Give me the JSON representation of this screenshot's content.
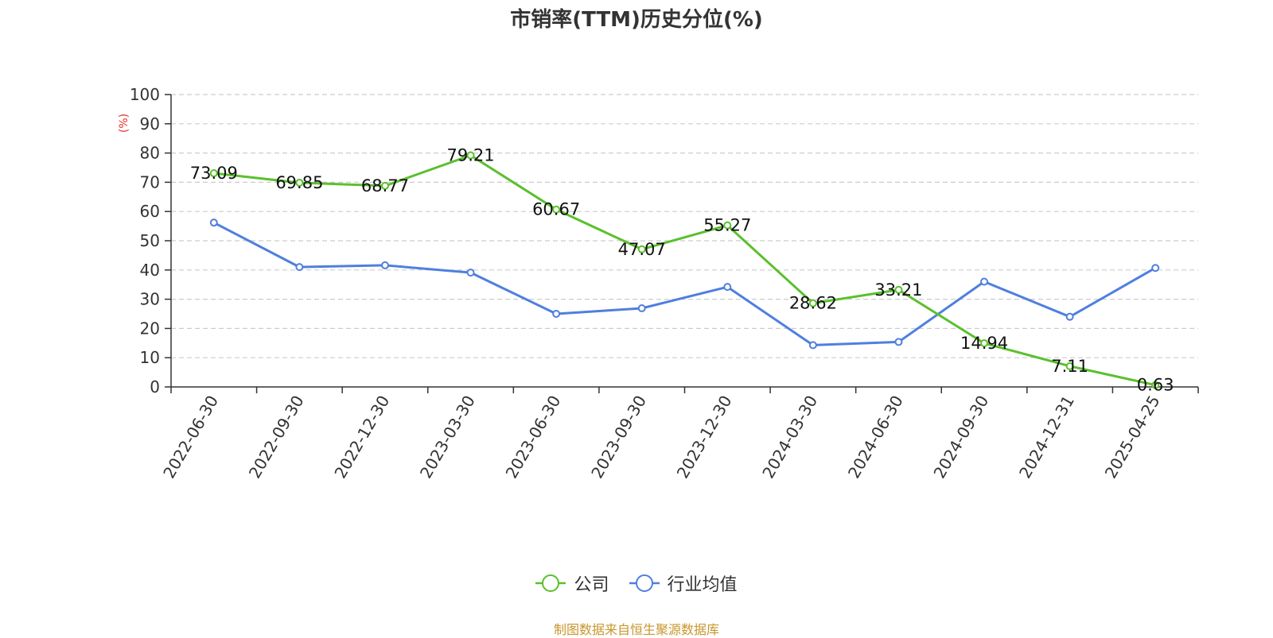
{
  "chart_data": {
    "type": "line",
    "title": "市销率(TTM)历史分位(%)",
    "ylabel": "(%)",
    "xlabel": "",
    "ylim": [
      0,
      100
    ],
    "yticks": [
      0,
      10,
      20,
      30,
      40,
      50,
      60,
      70,
      80,
      90,
      100
    ],
    "grid": true,
    "legend_position": "bottom",
    "categories": [
      "2022-06-30",
      "2022-09-30",
      "2022-12-30",
      "2023-03-30",
      "2023-06-30",
      "2023-09-30",
      "2023-12-30",
      "2024-03-30",
      "2024-06-30",
      "2024-09-30",
      "2024-12-31",
      "2025-04-25"
    ],
    "series": [
      {
        "name": "公司",
        "color": "#5ac02d",
        "values": [
          73.09,
          69.85,
          68.77,
          79.21,
          60.67,
          47.07,
          55.27,
          28.62,
          33.21,
          14.94,
          7.11,
          0.63
        ],
        "labels": [
          "73.09",
          "69.85",
          "68.77",
          "79.21",
          "60.67",
          "47.07",
          "55.27",
          "28.62",
          "33.21",
          "14.94",
          "7.11",
          "0.63"
        ]
      },
      {
        "name": "行业均值",
        "color": "#4f7fdf",
        "values": [
          56.2,
          41.0,
          41.6,
          39.1,
          25.0,
          26.9,
          34.2,
          14.3,
          15.4,
          36.0,
          24.0,
          40.7
        ]
      }
    ],
    "source_note": "制图数据来自恒生聚源数据库"
  }
}
